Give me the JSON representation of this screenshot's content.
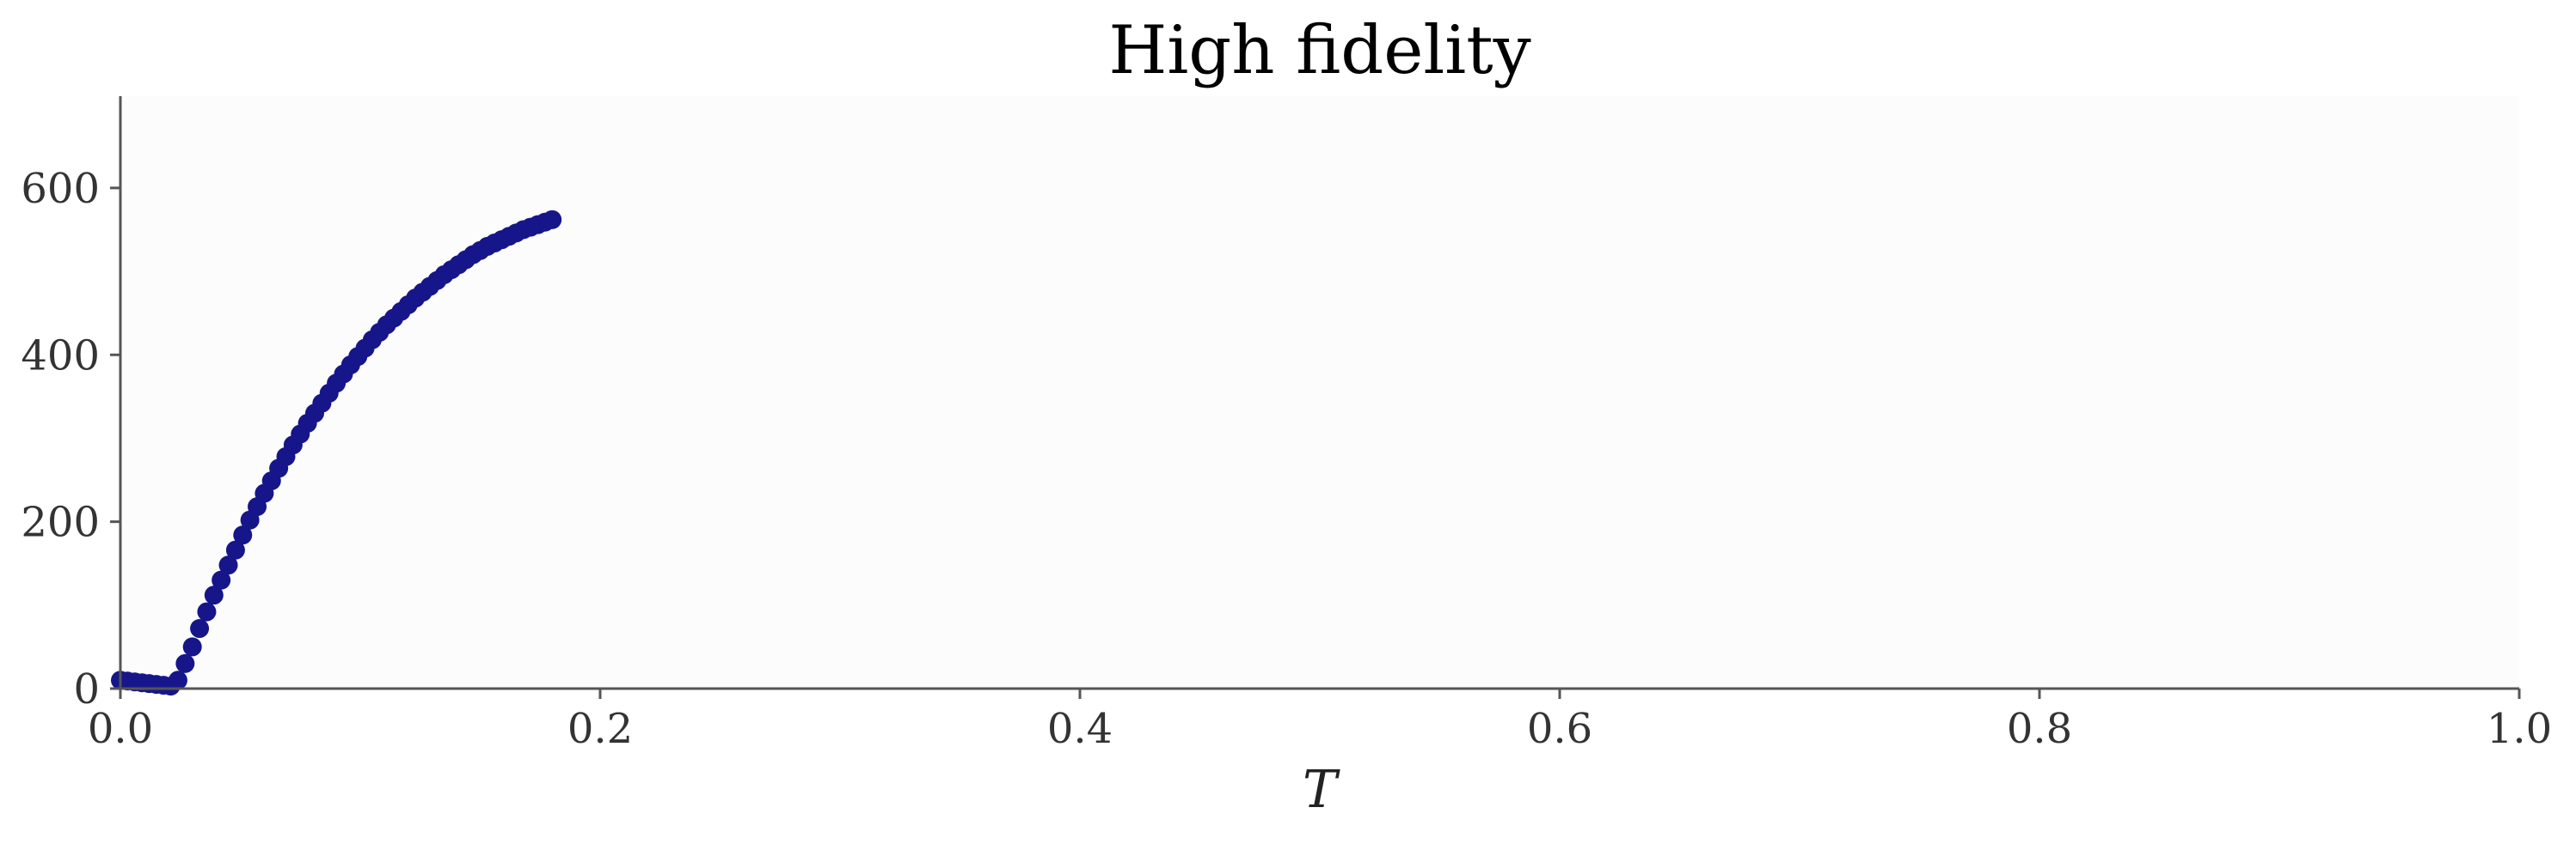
{
  "chart_data": {
    "type": "scatter",
    "title": "High fidelity",
    "xlabel": "T",
    "ylabel": "",
    "xlim": [
      0.0,
      1.0
    ],
    "ylim": [
      0,
      710
    ],
    "xticks": [
      0.0,
      0.2,
      0.4,
      0.6,
      0.8,
      1.0
    ],
    "xtick_labels": [
      "0.0",
      "0.2",
      "0.4",
      "0.6",
      "0.8",
      "1.0"
    ],
    "yticks": [
      0,
      200,
      400,
      600
    ],
    "ytick_labels": [
      "0",
      "200",
      "400",
      "600"
    ],
    "grid": false,
    "background": "#fcfcfc",
    "series": [
      {
        "color": "#16168a",
        "points": [
          [
            0.0,
            10
          ],
          [
            0.003,
            9
          ],
          [
            0.006,
            8
          ],
          [
            0.009,
            7
          ],
          [
            0.012,
            6
          ],
          [
            0.015,
            5
          ],
          [
            0.018,
            4
          ],
          [
            0.021,
            3
          ],
          [
            0.024,
            10
          ],
          [
            0.027,
            30
          ],
          [
            0.03,
            50
          ],
          [
            0.033,
            72
          ],
          [
            0.036,
            92
          ],
          [
            0.039,
            112
          ],
          [
            0.042,
            130
          ],
          [
            0.045,
            148
          ],
          [
            0.048,
            166
          ],
          [
            0.051,
            184
          ],
          [
            0.054,
            202
          ],
          [
            0.057,
            218
          ],
          [
            0.06,
            234
          ],
          [
            0.063,
            249
          ],
          [
            0.066,
            264
          ],
          [
            0.069,
            278
          ],
          [
            0.072,
            292
          ],
          [
            0.075,
            305
          ],
          [
            0.078,
            318
          ],
          [
            0.081,
            330
          ],
          [
            0.084,
            342
          ],
          [
            0.087,
            354
          ],
          [
            0.09,
            366
          ],
          [
            0.093,
            377
          ],
          [
            0.096,
            388
          ],
          [
            0.099,
            398
          ],
          [
            0.102,
            408
          ],
          [
            0.105,
            418
          ],
          [
            0.108,
            427
          ],
          [
            0.111,
            436
          ],
          [
            0.114,
            444
          ],
          [
            0.117,
            452
          ],
          [
            0.12,
            460
          ],
          [
            0.123,
            468
          ],
          [
            0.126,
            475
          ],
          [
            0.129,
            482
          ],
          [
            0.132,
            489
          ],
          [
            0.135,
            496
          ],
          [
            0.138,
            502
          ],
          [
            0.141,
            508
          ],
          [
            0.144,
            514
          ],
          [
            0.147,
            520
          ],
          [
            0.15,
            525
          ],
          [
            0.153,
            530
          ],
          [
            0.156,
            534
          ],
          [
            0.159,
            538
          ],
          [
            0.162,
            542
          ],
          [
            0.165,
            546
          ],
          [
            0.168,
            550
          ],
          [
            0.171,
            553
          ],
          [
            0.174,
            556
          ],
          [
            0.177,
            559
          ],
          [
            0.18,
            562
          ]
        ]
      }
    ]
  }
}
